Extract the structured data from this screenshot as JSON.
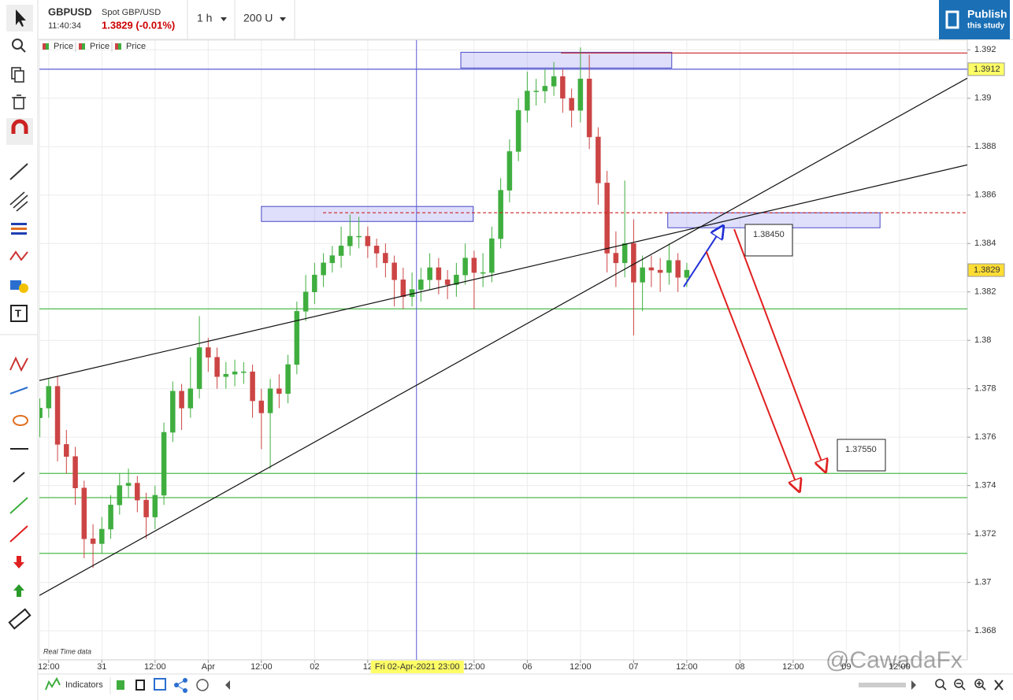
{
  "header": {
    "symbol": "GBPUSD",
    "description": "Spot GBP/USD",
    "time": "11:40:34",
    "quote": "1.3829 (-0.01%)",
    "interval": "1 h",
    "bars": "200 U",
    "publish": "Publish",
    "publish_sub": "this study"
  },
  "legend": [
    "Price",
    "Price",
    "Price"
  ],
  "footer": {
    "indicators": "Indicators",
    "watermark": "@CawadaFx"
  },
  "notes": [
    "1.38450",
    "1.37550"
  ],
  "chart_data": {
    "type": "candlestick",
    "status": "Real Time data",
    "x": [
      -2,
      0,
      2,
      4,
      6,
      8,
      10,
      12,
      14,
      16,
      18,
      20,
      22,
      24,
      26,
      28,
      30,
      32,
      34,
      36,
      38,
      40,
      42,
      44,
      46,
      48,
      50,
      52,
      54,
      56,
      58,
      60,
      62,
      64,
      66,
      68,
      70,
      72,
      74,
      76,
      78,
      80,
      82,
      84,
      86,
      88,
      90,
      92,
      94,
      96,
      98,
      100,
      102,
      104,
      106,
      108,
      110,
      112,
      114,
      116,
      118,
      120,
      122,
      124,
      126,
      128,
      130,
      132,
      134,
      136,
      138,
      140,
      142,
      144
    ],
    "open": [
      1.3768,
      1.3772,
      1.3781,
      1.3757,
      1.3752,
      1.3739,
      1.3718,
      1.3716,
      1.3722,
      1.3732,
      1.374,
      1.3741,
      1.3734,
      1.3727,
      1.3736,
      1.3762,
      1.3779,
      1.3772,
      1.378,
      1.3797,
      1.3793,
      1.3785,
      1.3786,
      1.3787,
      1.3787,
      1.3775,
      1.377,
      1.378,
      1.3778,
      1.379,
      1.3812,
      1.382,
      1.3827,
      1.3832,
      1.3835,
      1.3839,
      1.3843,
      1.3843,
      1.3839,
      1.3836,
      1.3832,
      1.3825,
      1.3818,
      1.3821,
      1.3825,
      1.383,
      1.3825,
      1.3823,
      1.3827,
      1.3834,
      1.3828,
      1.3828,
      1.3842,
      1.3862,
      1.3878,
      1.3895,
      1.3903,
      1.3903,
      1.3905,
      1.3909,
      1.39,
      1.3895,
      1.3908,
      1.3884,
      1.3865,
      1.3836,
      1.3832,
      1.384,
      1.3824,
      1.383,
      1.3829,
      1.3828,
      1.3833,
      1.3826
    ],
    "high": [
      1.3776,
      1.3784,
      1.3785,
      1.3763,
      1.3756,
      1.3742,
      1.3724,
      1.3727,
      1.3736,
      1.3745,
      1.3747,
      1.3744,
      1.3737,
      1.374,
      1.3766,
      1.3783,
      1.3782,
      1.3793,
      1.381,
      1.3801,
      1.3797,
      1.3791,
      1.3792,
      1.3791,
      1.379,
      1.378,
      1.3784,
      1.3786,
      1.3794,
      1.3816,
      1.3827,
      1.3832,
      1.3836,
      1.3839,
      1.3847,
      1.3852,
      1.3851,
      1.3847,
      1.3842,
      1.384,
      1.3835,
      1.383,
      1.3828,
      1.383,
      1.3836,
      1.3834,
      1.3829,
      1.3832,
      1.384,
      1.3837,
      1.3836,
      1.3847,
      1.3867,
      1.3883,
      1.39,
      1.3911,
      1.3908,
      1.3912,
      1.3915,
      1.3912,
      1.3904,
      1.3921,
      1.3918,
      1.3888,
      1.387,
      1.3845,
      1.3866,
      1.385,
      1.3835,
      1.3835,
      1.3834,
      1.384,
      1.3836,
      1.3832
    ],
    "low": [
      1.376,
      1.3768,
      1.375,
      1.3745,
      1.3732,
      1.371,
      1.3706,
      1.3712,
      1.3718,
      1.3728,
      1.3735,
      1.3729,
      1.3718,
      1.3722,
      1.3732,
      1.3758,
      1.3763,
      1.3768,
      1.3776,
      1.3787,
      1.378,
      1.378,
      1.3781,
      1.3782,
      1.3768,
      1.3755,
      1.3747,
      1.3772,
      1.3774,
      1.3786,
      1.3808,
      1.3815,
      1.3822,
      1.3828,
      1.383,
      1.3835,
      1.3838,
      1.3834,
      1.383,
      1.3826,
      1.3814,
      1.3813,
      1.3814,
      1.3816,
      1.3821,
      1.3819,
      1.3817,
      1.3818,
      1.3823,
      1.3813,
      1.3822,
      1.3824,
      1.3838,
      1.3857,
      1.3874,
      1.389,
      1.3897,
      1.3898,
      1.3901,
      1.3894,
      1.3888,
      1.389,
      1.3879,
      1.3856,
      1.3828,
      1.3822,
      1.3826,
      1.3802,
      1.3812,
      1.3822,
      1.382,
      1.3823,
      1.382,
      1.3822
    ],
    "close": [
      1.3772,
      1.3781,
      1.3757,
      1.3752,
      1.3739,
      1.3718,
      1.3716,
      1.3722,
      1.3732,
      1.374,
      1.3741,
      1.3734,
      1.3727,
      1.3736,
      1.3762,
      1.3779,
      1.3772,
      1.378,
      1.3797,
      1.3793,
      1.3785,
      1.3786,
      1.3787,
      1.3787,
      1.3775,
      1.377,
      1.378,
      1.3778,
      1.379,
      1.3812,
      1.382,
      1.3827,
      1.3832,
      1.3835,
      1.3839,
      1.3843,
      1.3843,
      1.3839,
      1.3836,
      1.3832,
      1.3825,
      1.3818,
      1.3821,
      1.3825,
      1.383,
      1.3825,
      1.3823,
      1.3827,
      1.3834,
      1.3828,
      1.3828,
      1.3842,
      1.3862,
      1.3878,
      1.3895,
      1.3903,
      1.3903,
      1.3905,
      1.3909,
      1.39,
      1.3895,
      1.3908,
      1.3884,
      1.3865,
      1.3836,
      1.3832,
      1.384,
      1.3824,
      1.383,
      1.3829,
      1.3828,
      1.3833,
      1.3826,
      1.3829
    ],
    "up_color": "#3fae3f",
    "down_color": "#cc4444",
    "xlim": [
      -2.1,
      207.3
    ],
    "xticks": [
      {
        "value": 0,
        "label": "12:00"
      },
      {
        "value": 12,
        "label": "31"
      },
      {
        "value": 24,
        "label": "12:00"
      },
      {
        "value": 36,
        "label": "Apr"
      },
      {
        "value": 48,
        "label": "12:00"
      },
      {
        "value": 60,
        "label": "02"
      },
      {
        "value": 72,
        "label": "12"
      },
      {
        "value": 96,
        "label": "12:00"
      },
      {
        "value": 108,
        "label": "06"
      },
      {
        "value": 120,
        "label": "12:00"
      },
      {
        "value": 132,
        "label": "07"
      },
      {
        "value": 144,
        "label": "12:00"
      },
      {
        "value": 156,
        "label": "08"
      },
      {
        "value": 168,
        "label": "12:00"
      },
      {
        "value": 180,
        "label": "09"
      },
      {
        "value": 192,
        "label": "12:00"
      }
    ],
    "ylim": [
      1.3668,
      1.3924
    ],
    "yticks": [
      1.368,
      1.37,
      1.372,
      1.374,
      1.376,
      1.378,
      1.38,
      1.382,
      1.384,
      1.386,
      1.388,
      1.39,
      1.392
    ],
    "grid": true,
    "last": 1.3829,
    "crosshair": {
      "x": 83,
      "label": "Fri 02-Apr-2021 23:00"
    },
    "hlines": [
      {
        "value": 1.3912,
        "color": "#5a5ad6",
        "axis_label": true
      },
      {
        "value": 1.3813,
        "color": "#4cbb4c",
        "axis_label": false
      },
      {
        "value": 1.3745,
        "color": "#4cbb4c",
        "axis_label": false
      },
      {
        "value": 1.3735,
        "color": "#4cbb4c",
        "axis_label": false
      },
      {
        "value": 1.3712,
        "color": "#4cbb4c",
        "axis_label": false
      }
    ],
    "boxes": [
      {
        "x": [
          93,
          140.6
        ],
        "y": [
          1.3919,
          1.39125
        ]
      },
      {
        "x": [
          48,
          95.8
        ],
        "y": [
          1.38553,
          1.38491
        ]
      },
      {
        "x": [
          139.7,
          187.6
        ],
        "y": [
          1.38527,
          1.38465
        ]
      }
    ],
    "segments": [
      {
        "x": [
          115.6,
          207.3
        ],
        "y": [
          1.39187,
          1.39187
        ],
        "color": "#cc2222",
        "dash": false,
        "arrow": false
      },
      {
        "x": [
          61.9,
          207.3
        ],
        "y": [
          1.38527,
          1.38527
        ],
        "color": "#cc2222",
        "dash": true,
        "arrow": false
      },
      {
        "x": [
          -2.1,
          207.3
        ],
        "y": [
          1.37834,
          1.38725
        ],
        "color": "#111111",
        "dash": false,
        "arrow": false
      },
      {
        "x": [
          -2.1,
          207.3
        ],
        "y": [
          1.36946,
          1.39083
        ],
        "color": "#111111",
        "dash": false,
        "arrow": false
      },
      {
        "x": [
          143.3,
          152.2
        ],
        "y": [
          1.38221,
          1.38472
        ],
        "color": "#1f2fd6",
        "dash": false,
        "arrow": true
      },
      {
        "x": [
          148.4,
          169.4
        ],
        "y": [
          1.38367,
          1.37376
        ],
        "color": "#e02020",
        "dash": false,
        "arrow": true
      },
      {
        "x": [
          154.7,
          175.3
        ],
        "y": [
          1.38459,
          1.37457
        ],
        "color": "#e02020",
        "dash": false,
        "arrow": true
      }
    ]
  }
}
